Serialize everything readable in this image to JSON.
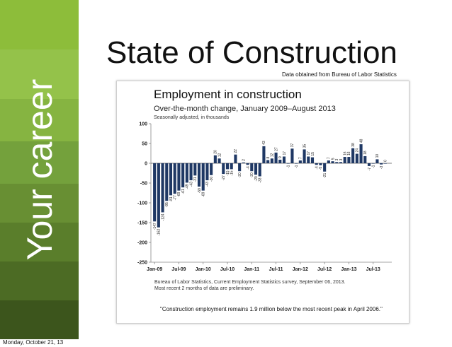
{
  "sidebar": {
    "label": "Your career",
    "colors": [
      "#8dbd3a",
      "#94c24a",
      "#86b441",
      "#74a13c",
      "#688f33",
      "#5a7e2b",
      "#4c6b24",
      "#3c551c"
    ]
  },
  "slide": {
    "title": "State of Construction",
    "source_note": "Data obtained from Bureau of Labor Statistics",
    "quote": "\"Construction employment remains 1.9 million below the most recent peak in April 2006.\"",
    "date": "Monday, October 21, 13"
  },
  "chart_data": {
    "type": "bar",
    "title": "Employment in construction",
    "subtitle": "Over-the-month change, January 2009–August 2013",
    "note": "Seasonally adjusted, in thousands",
    "ylim": [
      -250,
      100
    ],
    "y_ticks": [
      "100",
      "50",
      "0",
      "-50",
      "-100",
      "-150",
      "-200",
      "-250"
    ],
    "x_tick_labels": [
      "Jan-09",
      "Jul-09",
      "Jan-10",
      "Jul-10",
      "Jan-11",
      "Jul-11",
      "Jan-12",
      "Jul-12",
      "Jan-13",
      "Jul-13"
    ],
    "bar_color": "#1f3864",
    "values": [
      -147,
      -162,
      -124,
      -95,
      -81,
      -77,
      -69,
      -61,
      -49,
      -43,
      -31,
      -59,
      -69,
      -43,
      -30,
      20,
      12,
      -27,
      -15,
      -15,
      22,
      -20,
      2,
      -4,
      -20,
      -29,
      -33,
      43,
      8,
      12,
      27,
      9,
      17,
      -1,
      37,
      -1,
      7,
      35,
      17,
      15,
      -4,
      -5,
      -21,
      7,
      5,
      3,
      3,
      16,
      16,
      38,
      24,
      48,
      18,
      -7,
      -1,
      10,
      -3,
      0
    ],
    "value_labels": [
      "-147",
      "-162",
      "-124",
      "-95",
      "-81",
      "-77",
      "-69",
      "-61",
      "-49",
      "-43",
      "-31",
      "-59",
      "-69",
      "-43",
      "-30",
      "20",
      "12",
      "-27",
      "-15",
      "-15",
      "22",
      "-20",
      "2",
      "-4",
      "-20",
      "-29",
      "-33",
      "43",
      "8",
      "12",
      "27",
      "9",
      "17",
      "-1",
      "37",
      "-1",
      "7",
      "35",
      "17",
      "15",
      "-4",
      "-5",
      "-21",
      "7",
      "5",
      "3",
      "3",
      "16",
      "16",
      "38",
      "24",
      "48",
      "18",
      "-7",
      "-1",
      "10",
      "-3",
      "0"
    ],
    "footnotes": [
      "Bureau of Labor Statistics, Current Employment Statistics survey, September 06, 2013.",
      "Most recent 2 months of data are preliminary."
    ],
    "grid": false,
    "legend": "none"
  }
}
